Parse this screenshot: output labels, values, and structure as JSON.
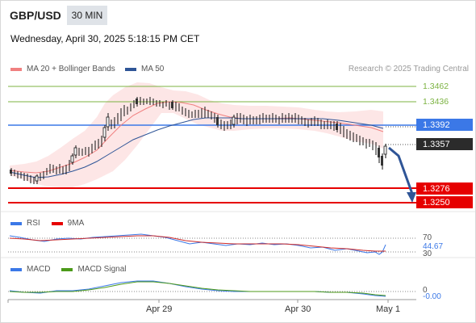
{
  "header": {
    "pair": "GBP/USD",
    "timeframe": "30 MIN",
    "datetime": "Wednesday, April 30, 2025 5:18:15 PM CET"
  },
  "legend": {
    "ma20": "MA 20 + Bollinger Bands",
    "ma50": "MA 50",
    "credit": "Research © 2025 Trading Central",
    "colors": {
      "ma20": "#f08080",
      "ma50": "#2f5597"
    }
  },
  "levels": {
    "r2": "1.3462",
    "r1": "1.3436",
    "pivot": "1.3392",
    "last": "1.3357",
    "s1": "1.3276",
    "s2": "1.3250",
    "colors": {
      "resistance": "#7cb342",
      "pivot": "#3b78e7",
      "support": "#e60000",
      "last": "#2b2b2b"
    }
  },
  "rsi": {
    "label": "RSI",
    "signal_label": "9MA",
    "level_high": "70",
    "value": "44.67",
    "level_low": "30"
  },
  "macd": {
    "label": "MACD",
    "signal_label": "MACD Signal",
    "zero": "0",
    "value": "-0.00"
  },
  "xaxis": {
    "labels": [
      "Apr 29",
      "Apr 30",
      "May 1"
    ]
  }
}
